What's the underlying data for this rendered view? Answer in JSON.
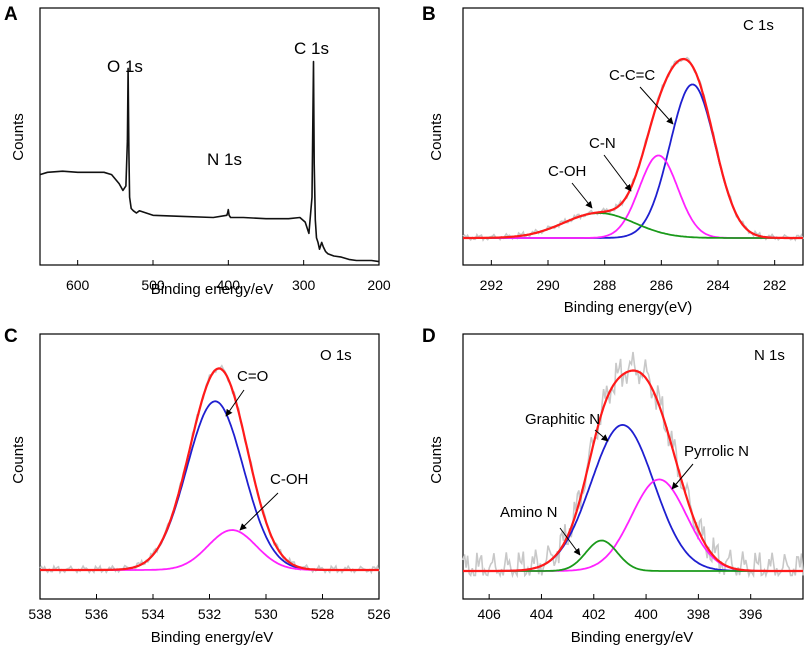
{
  "colors": {
    "axis": "#000000",
    "survey": "#111111",
    "envelope": "#ff1a1a",
    "raw": "#c8c8c8",
    "blue": "#1f1fd0",
    "magenta": "#ff22ff",
    "green": "#1a9a1a"
  },
  "chart_data": [
    {
      "type": "line",
      "panel_label": "A",
      "title": "",
      "xlabel": "Binding energy/eV",
      "ylabel": "Counts",
      "xlim": [
        650,
        200
      ],
      "ylim": [
        0,
        1
      ],
      "xticks": [
        600,
        500,
        400,
        300,
        200
      ],
      "xtick_labels": [
        "600",
        "500",
        "400",
        "300",
        "200"
      ],
      "series": [
        {
          "name": "survey",
          "color_key": "survey",
          "x": [
            650,
            640,
            620,
            600,
            580,
            565,
            555,
            545,
            540,
            536,
            534,
            533,
            532,
            531,
            529,
            526,
            522,
            518,
            500,
            460,
            420,
            402,
            401,
            400,
            399,
            397,
            380,
            350,
            320,
            305,
            298,
            293,
            289,
            287,
            286,
            284.5,
            283,
            281,
            279,
            276,
            274,
            271,
            268,
            260,
            250,
            240,
            230,
            210,
            200
          ],
          "y": [
            0.4,
            0.41,
            0.415,
            0.41,
            0.41,
            0.41,
            0.4,
            0.36,
            0.33,
            0.35,
            0.55,
            0.87,
            0.5,
            0.3,
            0.25,
            0.24,
            0.23,
            0.24,
            0.22,
            0.215,
            0.21,
            0.22,
            0.23,
            0.245,
            0.22,
            0.21,
            0.21,
            0.205,
            0.205,
            0.21,
            0.19,
            0.14,
            0.3,
            0.9,
            0.45,
            0.2,
            0.12,
            0.1,
            0.07,
            0.1,
            0.08,
            0.06,
            0.05,
            0.04,
            0.035,
            0.025,
            0.02,
            0.02,
            0.015
          ]
        }
      ],
      "annotations": [
        {
          "text": "O 1s",
          "x": 532,
          "y": 0.87
        },
        {
          "text": "N 1s",
          "x": 399,
          "y": 0.32
        },
        {
          "text": "C 1s",
          "x": 285,
          "y": 0.9
        }
      ]
    },
    {
      "type": "line",
      "panel_label": "B",
      "title": "C 1s",
      "xlabel": "Binding energy(eV)",
      "ylabel": "Counts",
      "xlim": [
        293,
        281
      ],
      "ylim": [
        0,
        1
      ],
      "xticks": [
        292,
        290,
        288,
        286,
        284,
        282
      ],
      "xtick_labels": [
        "292",
        "290",
        "288",
        "286",
        "284",
        "282"
      ],
      "series": [
        {
          "name": "C-C=C",
          "color_key": "blue",
          "shape": "gaussian",
          "center": 284.9,
          "amplitude": 0.8,
          "sigma": 0.8
        },
        {
          "name": "C-N",
          "color_key": "magenta",
          "shape": "gaussian",
          "center": 286.1,
          "amplitude": 0.43,
          "sigma": 0.68
        },
        {
          "name": "C-OH",
          "color_key": "green",
          "shape": "gaussian",
          "center": 288.2,
          "amplitude": 0.13,
          "sigma": 1.25
        },
        {
          "name": "envelope",
          "color_key": "envelope",
          "shape": "sum"
        }
      ],
      "annotations": [
        {
          "text": "C-C=C",
          "x": 285.5,
          "y": 0.55
        },
        {
          "text": "C-N",
          "x": 287.0,
          "y": 0.23
        },
        {
          "text": "C-OH",
          "x": 288.4,
          "y": 0.13
        }
      ]
    },
    {
      "type": "line",
      "panel_label": "C",
      "title": "O 1s",
      "xlabel": "Binding energy/eV",
      "ylabel": "Counts",
      "xlim": [
        538,
        526
      ],
      "ylim": [
        0,
        1
      ],
      "xticks": [
        538,
        536,
        534,
        532,
        530,
        528,
        526
      ],
      "xtick_labels": [
        "538",
        "536",
        "534",
        "532",
        "530",
        "528",
        "526"
      ],
      "series": [
        {
          "name": "C=O",
          "color_key": "blue",
          "shape": "gaussian",
          "center": 531.8,
          "amplitude": 0.76,
          "sigma": 1.0
        },
        {
          "name": "C-OH",
          "color_key": "magenta",
          "shape": "gaussian",
          "center": 531.2,
          "amplitude": 0.18,
          "sigma": 0.85
        },
        {
          "name": "envelope",
          "color_key": "envelope",
          "shape": "sum"
        }
      ],
      "annotations": [
        {
          "text": "C=O",
          "x": 531.6,
          "y": 0.76
        },
        {
          "text": "C-OH",
          "x": 531.0,
          "y": 0.19
        }
      ]
    },
    {
      "type": "line",
      "panel_label": "D",
      "title": "N 1s",
      "xlabel": "Binding energy/eV",
      "ylabel": "Counts",
      "xlim": [
        407,
        394
      ],
      "ylim": [
        0,
        1
      ],
      "xticks": [
        406,
        404,
        402,
        400,
        398,
        396
      ],
      "xtick_labels": [
        "406",
        "404",
        "402",
        "400",
        "398",
        "396"
      ],
      "series": [
        {
          "name": "Graphitic N",
          "color_key": "blue",
          "shape": "gaussian",
          "center": 400.9,
          "amplitude": 0.67,
          "sigma": 1.2
        },
        {
          "name": "Pyrrolic N",
          "color_key": "magenta",
          "shape": "gaussian",
          "center": 399.5,
          "amplitude": 0.42,
          "sigma": 1.05
        },
        {
          "name": "Amino N",
          "color_key": "green",
          "shape": "gaussian",
          "center": 401.7,
          "amplitude": 0.14,
          "sigma": 0.6
        },
        {
          "name": "envelope",
          "color_key": "envelope",
          "shape": "sum"
        }
      ],
      "annotations": [
        {
          "text": "Graphitic N",
          "x": 400.8,
          "y": 0.67
        },
        {
          "text": "Pyrrolic N",
          "x": 399.3,
          "y": 0.42
        },
        {
          "text": "Amino N",
          "x": 401.5,
          "y": 0.1
        }
      ]
    }
  ]
}
